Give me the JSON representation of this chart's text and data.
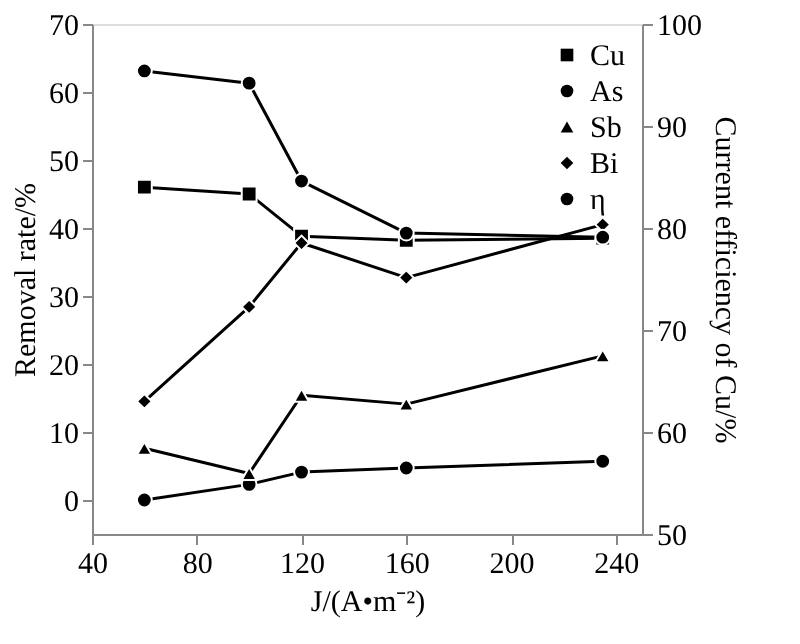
{
  "chart_data": {
    "type": "line",
    "xlabel": "J/(A•m⁻²)",
    "ylabel": "Removal rate/%",
    "y2label": "Current efficiency of Cu/%",
    "x": [
      60,
      100,
      120,
      160,
      235
    ],
    "xlim": [
      40,
      250
    ],
    "xticks": [
      40,
      80,
      120,
      160,
      200,
      240
    ],
    "ylim": [
      -5,
      70
    ],
    "yticks": [
      0,
      10,
      20,
      30,
      40,
      50,
      60,
      70
    ],
    "y2lim": [
      50,
      100
    ],
    "y2ticks": [
      50,
      60,
      70,
      80,
      90,
      100
    ],
    "legend": "top right",
    "grid": false,
    "line_style": "solid",
    "series": [
      {
        "name": "Cu",
        "color": "#000000",
        "marker": "square",
        "values": [
          46,
          45,
          38.8,
          38.2,
          38.5
        ]
      },
      {
        "name": "As",
        "color": "#000000",
        "marker": "circle",
        "values": [
          0,
          2.3,
          4.1,
          4.7,
          5.7
        ]
      },
      {
        "name": "Sb",
        "color": "#000000",
        "marker": "triangle",
        "values": [
          7.6,
          3.9,
          15.4,
          14.1,
          21.2
        ]
      },
      {
        "name": "Bi",
        "color": "#000000",
        "marker": "diamond",
        "values": [
          14.5,
          28.4,
          37.8,
          32.7,
          40.5
        ]
      },
      {
        "name": "η",
        "color": "#000000",
        "marker": "circle",
        "axis": "y2",
        "values": [
          95.4,
          94.2,
          84.6,
          79.5,
          79.1
        ]
      }
    ]
  }
}
